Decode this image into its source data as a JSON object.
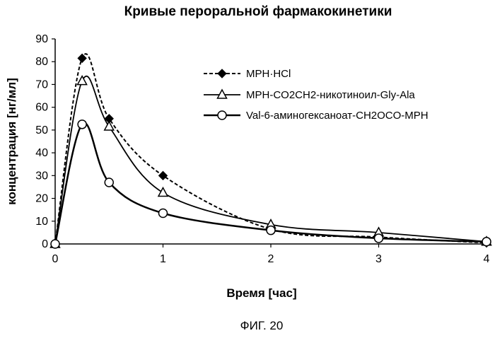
{
  "chart_data": {
    "type": "line",
    "title": "Кривые пероральной фармакокинетики",
    "xlabel": "Время [час]",
    "ylabel": "концентрация [нг/мл]",
    "xlim": [
      0,
      4
    ],
    "ylim": [
      0,
      90
    ],
    "xticks": [
      "0",
      "1",
      "2",
      "3",
      "4"
    ],
    "yticks": [
      "0",
      "10",
      "20",
      "30",
      "40",
      "50",
      "60",
      "70",
      "80",
      "90"
    ],
    "grid": false,
    "legend_position": "top-right",
    "series": [
      {
        "name": "MPH·HCl",
        "marker": "diamond",
        "line": "dashed",
        "x": [
          0,
          0.25,
          0.5,
          1,
          2,
          3,
          4
        ],
        "y": [
          0,
          81.5,
          55,
          30,
          6.5,
          3,
          0.5
        ]
      },
      {
        "name": "MPH-CO2CH2-никотиноил-Gly-Ala",
        "marker": "triangle",
        "line": "solid",
        "x": [
          0,
          0.25,
          0.5,
          1,
          2,
          3,
          4
        ],
        "y": [
          0,
          71.5,
          51.5,
          22.5,
          8.5,
          5,
          1
        ]
      },
      {
        "name": "Val-6-аминогексаноат-CH2OCO-MPH",
        "marker": "circle",
        "line": "solid",
        "x": [
          0,
          0.25,
          0.5,
          1,
          2,
          3,
          4
        ],
        "y": [
          0,
          52.5,
          27,
          13.5,
          6,
          2.5,
          1
        ]
      }
    ]
  },
  "caption": "ФИГ. 20"
}
